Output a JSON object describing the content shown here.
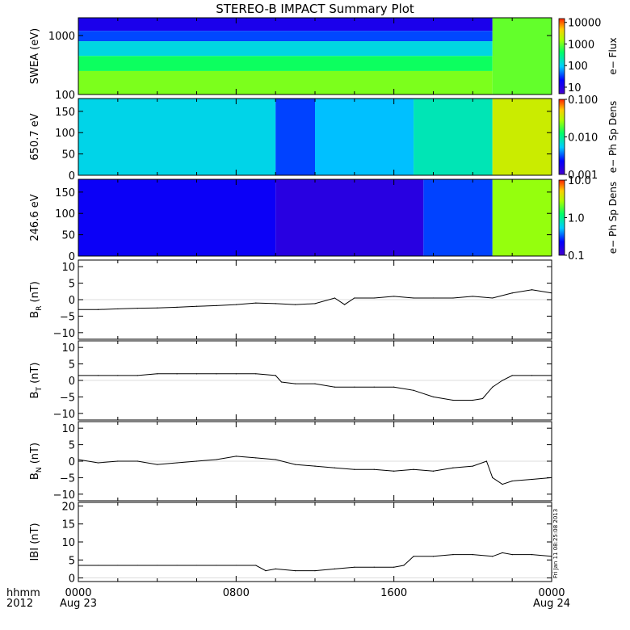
{
  "title": "STEREO-B IMPACT Summary Plot",
  "stamp": "Fri Jan 11 08:25:08 2013",
  "time_axis": {
    "row1_labels": [
      "0000",
      "0800",
      "1600",
      "0000"
    ],
    "row2_labels": [
      "Aug 23",
      "",
      "",
      "Aug 24"
    ],
    "corner_top": "hhmm",
    "corner_bottom": "2012",
    "range_hours": [
      0,
      24
    ]
  },
  "chart_data": [
    {
      "type": "heatmap",
      "name": "swea",
      "ylabel": "SWEA (eV)",
      "yscale": "log",
      "ylim": [
        100,
        2000
      ],
      "yticks": [
        100,
        1000
      ],
      "ytick_labels": [
        "100",
        "1000"
      ],
      "colorbar": {
        "label": "e− Flux",
        "scale": "log",
        "range": [
          5,
          15000
        ],
        "ticks": [
          10,
          100,
          1000,
          10000
        ],
        "tick_labels": [
          "10",
          "100",
          "1000",
          "10000"
        ]
      },
      "bands": [
        {
          "y": [
            1200,
            2000
          ],
          "hours": [
            0,
            21
          ],
          "value": 12
        },
        {
          "y": [
            800,
            1200
          ],
          "hours": [
            0,
            21
          ],
          "value": 35
        },
        {
          "y": [
            450,
            800
          ],
          "hours": [
            0,
            21
          ],
          "value": 120
        },
        {
          "y": [
            250,
            450
          ],
          "hours": [
            0,
            21
          ],
          "value": 450
        },
        {
          "y": [
            100,
            250
          ],
          "hours": [
            0,
            21
          ],
          "value": 1100
        },
        {
          "y": [
            100,
            2000
          ],
          "hours": [
            21,
            24
          ],
          "value": 900
        }
      ]
    },
    {
      "type": "heatmap",
      "name": "pad650",
      "ylabel": "650.7 eV",
      "ylim": [
        0,
        180
      ],
      "yticks": [
        0,
        50,
        100,
        150
      ],
      "ytick_labels": [
        "0",
        "50",
        "100",
        "150"
      ],
      "colorbar": {
        "label": "e− Ph Sp Dens",
        "scale": "log",
        "range": [
          0.001,
          0.1
        ],
        "ticks": [
          0.001,
          0.01,
          0.1
        ],
        "tick_labels": [
          "0.001",
          "0.010",
          "0.100"
        ]
      },
      "segments": [
        {
          "hours": [
            0,
            10
          ],
          "value": 0.006
        },
        {
          "hours": [
            10,
            12
          ],
          "value": 0.003
        },
        {
          "hours": [
            12,
            17
          ],
          "value": 0.005
        },
        {
          "hours": [
            17,
            21
          ],
          "value": 0.008
        },
        {
          "hours": [
            21,
            24
          ],
          "value": 0.035
        }
      ]
    },
    {
      "type": "heatmap",
      "name": "pad246",
      "ylabel": "246.6 eV",
      "ylim": [
        0,
        180
      ],
      "yticks": [
        0,
        50,
        100,
        150
      ],
      "ytick_labels": [
        "0",
        "50",
        "100",
        "150"
      ],
      "colorbar": {
        "label": "e− Ph Sp Dens",
        "scale": "log",
        "range": [
          0.1,
          10
        ],
        "ticks": [
          0.1,
          1,
          10
        ],
        "tick_labels": [
          "0.1",
          "1.0",
          "10.0"
        ]
      },
      "segments": [
        {
          "hours": [
            0,
            10
          ],
          "value": 0.2
        },
        {
          "hours": [
            10,
            17.5
          ],
          "value": 0.14
        },
        {
          "hours": [
            17.5,
            21
          ],
          "value": 0.3
        },
        {
          "hours": [
            21,
            24
          ],
          "value": 2.5
        }
      ]
    },
    {
      "type": "line",
      "name": "br",
      "ylabel_main": "B",
      "ylabel_sub": "R",
      "ylabel_unit": " (nT)",
      "ylim": [
        -12,
        12
      ],
      "yticks": [
        -10,
        -5,
        0,
        5,
        10
      ],
      "ytick_labels": [
        "−10",
        "−5",
        "0",
        "5",
        "10"
      ],
      "x": [
        0,
        1,
        2,
        3,
        4,
        5,
        6,
        7,
        8,
        9,
        10,
        11,
        12,
        13,
        13.5,
        14,
        15,
        16,
        17,
        18,
        19,
        20,
        21,
        22,
        23,
        24
      ],
      "y": [
        -3,
        -3,
        -2.8,
        -2.6,
        -2.5,
        -2.3,
        -2,
        -1.8,
        -1.5,
        -1,
        -1.2,
        -1.5,
        -1.2,
        0.5,
        -1.5,
        0.5,
        0.5,
        1,
        0.5,
        0.5,
        0.5,
        1,
        0.5,
        2,
        3,
        2
      ]
    },
    {
      "type": "line",
      "name": "bt",
      "ylabel_main": "B",
      "ylabel_sub": "T",
      "ylabel_unit": " (nT)",
      "ylim": [
        -12,
        12
      ],
      "yticks": [
        -10,
        -5,
        0,
        5,
        10
      ],
      "ytick_labels": [
        "−10",
        "−5",
        "0",
        "5",
        "10"
      ],
      "x": [
        0,
        1,
        2,
        3,
        4,
        5,
        6,
        7,
        8,
        9,
        10,
        10.3,
        11,
        12,
        13,
        14,
        15,
        16,
        17,
        18,
        19,
        20,
        20.5,
        21,
        21.5,
        22,
        23,
        24
      ],
      "y": [
        1.5,
        1.5,
        1.5,
        1.5,
        2,
        2,
        2,
        2,
        2,
        2,
        1.5,
        -0.5,
        -1,
        -1,
        -2,
        -2,
        -2,
        -2,
        -3,
        -5,
        -6,
        -6,
        -5.5,
        -2,
        0,
        1.5,
        1.5,
        1.5
      ]
    },
    {
      "type": "line",
      "name": "bn",
      "ylabel_main": "B",
      "ylabel_sub": "N",
      "ylabel_unit": " (nT)",
      "ylim": [
        -12,
        12
      ],
      "yticks": [
        -10,
        -5,
        0,
        5,
        10
      ],
      "ytick_labels": [
        "−10",
        "−5",
        "0",
        "5",
        "10"
      ],
      "x": [
        0,
        1,
        2,
        3,
        4,
        5,
        6,
        7,
        8,
        9,
        10,
        11,
        12,
        13,
        14,
        15,
        16,
        17,
        18,
        19,
        20,
        20.7,
        21,
        21.5,
        22,
        23,
        24
      ],
      "y": [
        0.5,
        -0.5,
        0,
        0,
        -1,
        -0.5,
        0,
        0.5,
        1.5,
        1,
        0.5,
        -1,
        -1.5,
        -2,
        -2.5,
        -2.5,
        -3,
        -2.5,
        -3,
        -2,
        -1.5,
        0,
        -5,
        -7,
        -6,
        -5.5,
        -5
      ]
    },
    {
      "type": "line",
      "name": "bmag",
      "ylabel_main": "IBI",
      "ylabel_sub": "",
      "ylabel_unit": " (nT)",
      "ylim": [
        -1,
        21
      ],
      "yticks": [
        0,
        5,
        10,
        15,
        20
      ],
      "ytick_labels": [
        "0",
        "5",
        "10",
        "15",
        "20"
      ],
      "x": [
        0,
        1,
        2,
        3,
        4,
        5,
        6,
        7,
        8,
        9,
        9.5,
        10,
        11,
        12,
        13,
        14,
        15,
        16,
        16.5,
        17,
        18,
        19,
        20,
        21,
        21.5,
        22,
        23,
        24
      ],
      "y": [
        3.5,
        3.5,
        3.5,
        3.5,
        3.5,
        3.5,
        3.5,
        3.5,
        3.5,
        3.5,
        2,
        2.5,
        2,
        2,
        2.5,
        3,
        3,
        3,
        3.5,
        6,
        6,
        6.5,
        6.5,
        6,
        7,
        6.5,
        6.5,
        6
      ]
    }
  ]
}
